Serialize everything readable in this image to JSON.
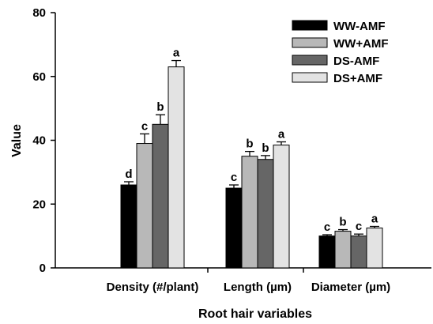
{
  "chart_data": {
    "type": "bar",
    "title": "",
    "xlabel": "Root hair variables",
    "ylabel": "Value",
    "ylim": [
      0,
      80
    ],
    "yticks": [
      0,
      20,
      40,
      60,
      80
    ],
    "categories": [
      "Density (#/plant)",
      "Length (µm)",
      "Diameter (µm)"
    ],
    "series": [
      {
        "name": "WW-AMF",
        "color": "#000000",
        "values": [
          26,
          25,
          10
        ],
        "errors": [
          1.0,
          1.0,
          0.4
        ],
        "letters": [
          "d",
          "c",
          "c"
        ]
      },
      {
        "name": "WW+AMF",
        "color": "#b8b8b8",
        "values": [
          39,
          35,
          11.5
        ],
        "errors": [
          3.0,
          1.5,
          0.5
        ],
        "letters": [
          "c",
          "b",
          "b"
        ]
      },
      {
        "name": "DS-AMF",
        "color": "#666666",
        "values": [
          45,
          34,
          10
        ],
        "errors": [
          3.0,
          1.2,
          0.6
        ],
        "letters": [
          "b",
          "b",
          "c"
        ]
      },
      {
        "name": "DS+AMF",
        "color": "#e3e3e3",
        "values": [
          63,
          38.5,
          12.5
        ],
        "errors": [
          2.0,
          1.0,
          0.5
        ],
        "letters": [
          "a",
          "a",
          "a"
        ]
      }
    ],
    "legend": "top-right",
    "grid": false
  }
}
